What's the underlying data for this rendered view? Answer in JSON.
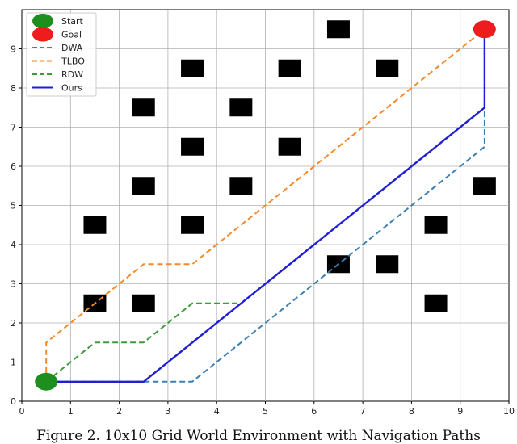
{
  "caption": "Figure 2.    10x10 Grid World Environment with Navigation Paths",
  "chart_data": {
    "type": "line",
    "title": "",
    "xlabel": "",
    "ylabel": "",
    "xlim": [
      0,
      10
    ],
    "ylim": [
      0,
      10
    ],
    "xticks": [
      "0",
      "1",
      "2",
      "3",
      "4",
      "5",
      "6",
      "7",
      "8",
      "9",
      "10"
    ],
    "yticks": [
      "0",
      "1",
      "2",
      "3",
      "4",
      "5",
      "6",
      "7",
      "8",
      "9"
    ],
    "grid": true,
    "legend_placement": "top-left",
    "start": {
      "name": "Start",
      "x": 0.5,
      "y": 0.5,
      "color": "#1e8f1e"
    },
    "goal": {
      "name": "Goal",
      "x": 9.5,
      "y": 9.5,
      "color": "#ee1c1c"
    },
    "obstacles": [
      [
        6.5,
        9.5
      ],
      [
        3.5,
        8.5
      ],
      [
        5.5,
        8.5
      ],
      [
        7.5,
        8.5
      ],
      [
        2.5,
        7.5
      ],
      [
        4.5,
        7.5
      ],
      [
        3.5,
        6.5
      ],
      [
        5.5,
        6.5
      ],
      [
        2.5,
        5.5
      ],
      [
        4.5,
        5.5
      ],
      [
        9.5,
        5.5
      ],
      [
        1.5,
        4.5
      ],
      [
        3.5,
        4.5
      ],
      [
        8.5,
        4.5
      ],
      [
        6.5,
        3.5
      ],
      [
        7.5,
        3.5
      ],
      [
        1.5,
        2.5
      ],
      [
        2.5,
        2.5
      ],
      [
        8.5,
        2.5
      ]
    ],
    "series": [
      {
        "name": "DWA",
        "color": "#3b7fb5",
        "style": "dashed",
        "points": [
          [
            0.5,
            0.5
          ],
          [
            3.5,
            0.5
          ],
          [
            9.5,
            6.5
          ],
          [
            9.5,
            9.5
          ]
        ]
      },
      {
        "name": "TLBO",
        "color": "#f28a2e",
        "style": "dashed",
        "points": [
          [
            0.5,
            0.5
          ],
          [
            0.5,
            1.5
          ],
          [
            2.5,
            3.5
          ],
          [
            3.5,
            3.5
          ],
          [
            9.5,
            9.5
          ]
        ]
      },
      {
        "name": "RDW",
        "color": "#3e9a3e",
        "style": "dashed",
        "points": [
          [
            0.5,
            0.5
          ],
          [
            1.5,
            1.5
          ],
          [
            2.5,
            1.5
          ],
          [
            3.5,
            2.5
          ],
          [
            4.5,
            2.5
          ]
        ]
      },
      {
        "name": "Ours",
        "color": "#1f1fd6",
        "style": "solid",
        "points": [
          [
            0.5,
            0.5
          ],
          [
            2.5,
            0.5
          ],
          [
            9.5,
            7.5
          ],
          [
            9.5,
            9.5
          ]
        ]
      }
    ]
  }
}
